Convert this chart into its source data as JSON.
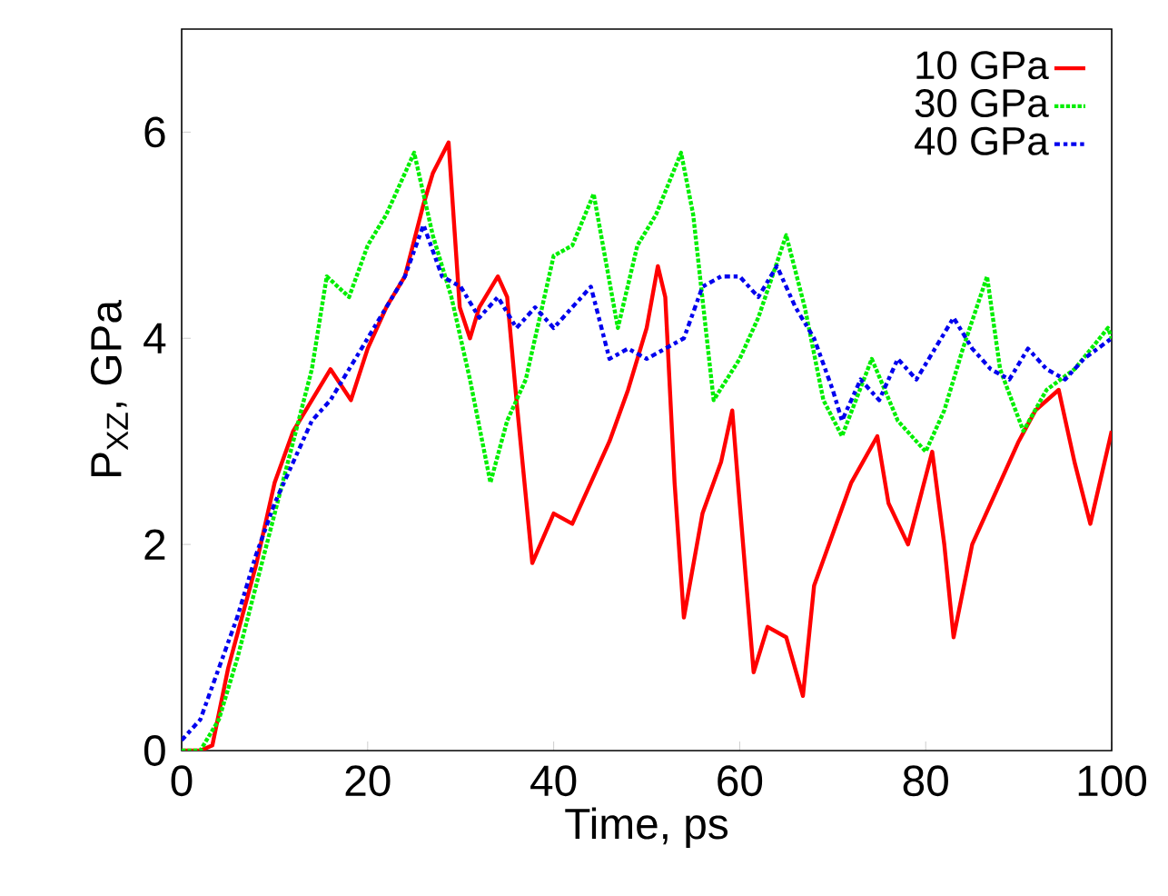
{
  "chart_data": {
    "type": "line",
    "xlabel": "Time, ps",
    "ylabel": "P$_{XZ}$, GPa",
    "xlim": [
      0,
      100
    ],
    "ylim": [
      0,
      7
    ],
    "xticks": [
      0,
      20,
      40,
      60,
      80,
      100
    ],
    "yticks": [
      0,
      2,
      4,
      6
    ],
    "grid": false,
    "legend": "top right",
    "marker": "none",
    "series": [
      {
        "name": "10 GPa",
        "color": "#ff0000",
        "line_style": "solid",
        "x": [
          0,
          2,
          3.3,
          5,
          8,
          10,
          12,
          14,
          16,
          18.2,
          20,
          22,
          24,
          26,
          27,
          28.7,
          29.9,
          31,
          32,
          34,
          35,
          36,
          37.7,
          40,
          42,
          44,
          46,
          48,
          50,
          51.2,
          52,
          53,
          54,
          56,
          58,
          59.2,
          60,
          61.5,
          63,
          65,
          66.8,
          68,
          70,
          72,
          74.8,
          76,
          78.1,
          80.7,
          82,
          83,
          85,
          88,
          90,
          91.8,
          94.3,
          96,
          97.7,
          100
        ],
        "values": [
          0,
          0,
          0.05,
          0.8,
          1.8,
          2.6,
          3.1,
          3.4,
          3.7,
          3.4,
          3.9,
          4.3,
          4.6,
          5.3,
          5.6,
          5.9,
          4.3,
          4.0,
          4.3,
          4.6,
          4.4,
          3.4,
          1.82,
          2.3,
          2.2,
          2.6,
          3.0,
          3.5,
          4.1,
          4.7,
          4.4,
          2.6,
          1.29,
          2.3,
          2.8,
          3.3,
          2.4,
          0.76,
          1.2,
          1.1,
          0.53,
          1.6,
          2.1,
          2.6,
          3.05,
          2.4,
          2.0,
          2.9,
          2.0,
          1.1,
          2.0,
          2.6,
          3.0,
          3.3,
          3.5,
          2.8,
          2.2,
          3.1
        ]
      },
      {
        "name": "30 GPa",
        "color": "#00ee00",
        "line_style": "dotted",
        "x": [
          0,
          2,
          4,
          6,
          8,
          10,
          12,
          14,
          15.6,
          18,
          20,
          22,
          25,
          27,
          29,
          31,
          33.2,
          35,
          37,
          40,
          42,
          44.3,
          46.9,
          49,
          51,
          53.7,
          55,
          57.2,
          60,
          62,
          65,
          67,
          69,
          71,
          74.2,
          77,
          80,
          82,
          84,
          86.6,
          88,
          90.5,
          93,
          96,
          99.6,
          100
        ],
        "values": [
          0,
          0,
          0.3,
          0.9,
          1.6,
          2.3,
          3.0,
          3.7,
          4.6,
          4.4,
          4.9,
          5.2,
          5.8,
          5.0,
          4.4,
          3.6,
          2.6,
          3.2,
          3.6,
          4.8,
          4.9,
          5.4,
          4.1,
          4.9,
          5.2,
          5.8,
          5.2,
          3.4,
          3.8,
          4.2,
          5.0,
          4.3,
          3.4,
          3.05,
          3.8,
          3.2,
          2.9,
          3.3,
          3.9,
          4.6,
          3.7,
          3.1,
          3.5,
          3.7,
          4.1,
          4.0
        ]
      },
      {
        "name": "40 GPa",
        "color": "#0000ee",
        "line_style": "dashed",
        "x": [
          0,
          2,
          4,
          6,
          8,
          10,
          12,
          14,
          16,
          18,
          20,
          22,
          24,
          26,
          28,
          30,
          32,
          34,
          36,
          38,
          40,
          42,
          44,
          46,
          48,
          50,
          52,
          54,
          56,
          58,
          60,
          62,
          64,
          66,
          68,
          70,
          71,
          73,
          75,
          77,
          79,
          81,
          83,
          85,
          87,
          89,
          91,
          93,
          95,
          97,
          100
        ],
        "values": [
          0.1,
          0.3,
          0.8,
          1.3,
          1.9,
          2.4,
          2.8,
          3.2,
          3.4,
          3.7,
          4.0,
          4.3,
          4.6,
          5.1,
          4.6,
          4.5,
          4.2,
          4.4,
          4.1,
          4.3,
          4.1,
          4.3,
          4.5,
          3.8,
          3.9,
          3.8,
          3.9,
          4.0,
          4.5,
          4.6,
          4.6,
          4.4,
          4.7,
          4.3,
          4.0,
          3.5,
          3.2,
          3.6,
          3.4,
          3.8,
          3.6,
          3.9,
          4.2,
          3.9,
          3.7,
          3.6,
          3.9,
          3.7,
          3.6,
          3.8,
          4.0
        ]
      }
    ]
  }
}
